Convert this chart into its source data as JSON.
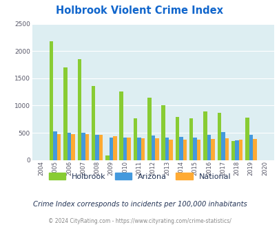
{
  "title": "Holbrook Violent Crime Index",
  "years": [
    2004,
    2005,
    2006,
    2007,
    2008,
    2009,
    2010,
    2011,
    2012,
    2013,
    2014,
    2015,
    2016,
    2017,
    2018,
    2019,
    2020
  ],
  "holbrook": [
    0,
    2175,
    1700,
    1850,
    1360,
    90,
    1260,
    770,
    1140,
    1000,
    790,
    770,
    890,
    870,
    350,
    775,
    0
  ],
  "arizona": [
    0,
    520,
    505,
    495,
    460,
    410,
    415,
    415,
    450,
    415,
    420,
    415,
    465,
    515,
    365,
    460,
    0
  ],
  "national": [
    0,
    475,
    470,
    475,
    460,
    440,
    415,
    400,
    395,
    375,
    370,
    375,
    390,
    395,
    375,
    390,
    0
  ],
  "holbrook_color": "#88cc33",
  "arizona_color": "#4499dd",
  "national_color": "#ffaa33",
  "bg_color": "#ddeef2",
  "title_color": "#1166cc",
  "ylim": [
    0,
    2500
  ],
  "yticks": [
    0,
    500,
    1000,
    1500,
    2000,
    2500
  ],
  "subtitle": "Crime Index corresponds to incidents per 100,000 inhabitants",
  "footer": "© 2024 CityRating.com - https://www.cityrating.com/crime-statistics/",
  "legend_labels": [
    "Holbrook",
    "Arizona",
    "National"
  ],
  "subtitle_color": "#223355",
  "footer_color": "#888888"
}
